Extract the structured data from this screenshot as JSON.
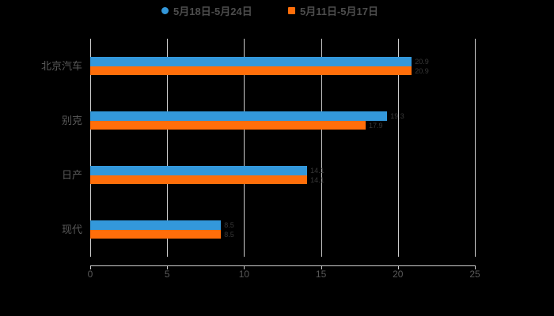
{
  "legend": {
    "items": [
      {
        "label": "5月18日-5月24日",
        "color": "#3398db",
        "shape": "circle"
      },
      {
        "label": "5月11日-5月17日",
        "color": "#ff6e0a",
        "shape": "square"
      }
    ]
  },
  "chart_data": {
    "type": "bar",
    "orientation": "horizontal",
    "title": "",
    "xlabel": "",
    "ylabel": "",
    "categories": [
      "北京汽车",
      "别克",
      "日产",
      "现代"
    ],
    "series": [
      {
        "name": "5月18日-5月24日",
        "color": "#3398db",
        "values": [
          20.9,
          19.3,
          14.1,
          8.5
        ]
      },
      {
        "name": "5月11日-5月17日",
        "color": "#ff6e0a",
        "values": [
          20.9,
          17.9,
          14.1,
          8.5
        ]
      }
    ],
    "x_ticks": [
      0,
      5,
      10,
      15,
      20,
      25
    ],
    "xlim": [
      0,
      25
    ],
    "grid": true,
    "legend_position": "top",
    "value_labels": true
  },
  "colors": {
    "background": "#000000",
    "gridline": "#cccccc",
    "axis": "#cccccc",
    "tick_text": "#595959",
    "category_text": "#595959",
    "legend_text": "#4d4d4d",
    "value_label_text": "#383838"
  }
}
